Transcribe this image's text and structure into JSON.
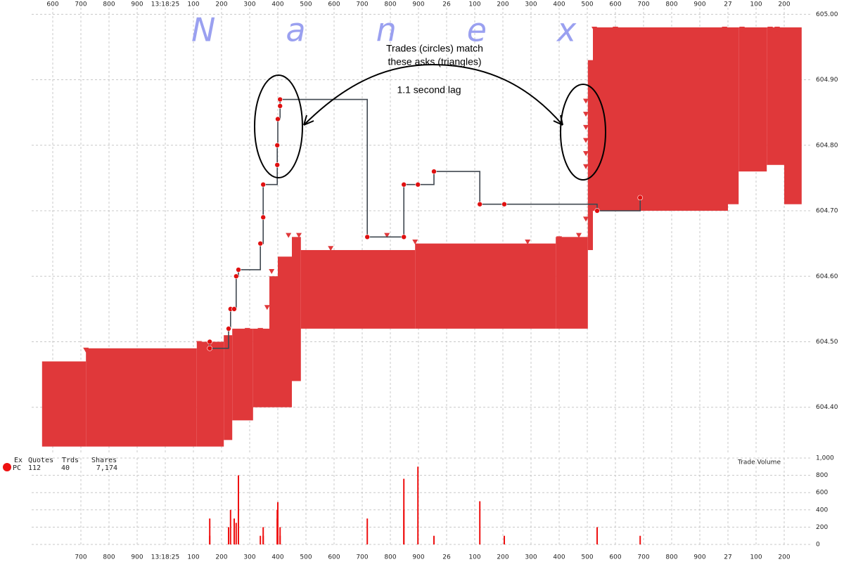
{
  "chart_data": [
    {
      "type": "tick",
      "watermark": "Nanex",
      "annotations": [
        "Trades (circles) match",
        "these asks (triangles)",
        "1.1 second lag"
      ],
      "xlim": [
        24.525,
        27.3
      ],
      "xticks": [
        {
          "value": 24.6,
          "label": "600"
        },
        {
          "value": 24.7,
          "label": "700"
        },
        {
          "value": 24.8,
          "label": "800"
        },
        {
          "value": 24.9,
          "label": "900"
        },
        {
          "value": 25.0,
          "label": "13:18:25"
        },
        {
          "value": 25.1,
          "label": "100"
        },
        {
          "value": 25.2,
          "label": "200"
        },
        {
          "value": 25.3,
          "label": "300"
        },
        {
          "value": 25.4,
          "label": "400"
        },
        {
          "value": 25.5,
          "label": "500"
        },
        {
          "value": 25.6,
          "label": "600"
        },
        {
          "value": 25.7,
          "label": "700"
        },
        {
          "value": 25.8,
          "label": "800"
        },
        {
          "value": 25.9,
          "label": "900"
        },
        {
          "value": 26.0,
          "label": "26"
        },
        {
          "value": 26.1,
          "label": "100"
        },
        {
          "value": 26.2,
          "label": "200"
        },
        {
          "value": 26.3,
          "label": "300"
        },
        {
          "value": 26.4,
          "label": "400"
        },
        {
          "value": 26.5,
          "label": "500"
        },
        {
          "value": 26.6,
          "label": "600"
        },
        {
          "value": 26.7,
          "label": "700"
        },
        {
          "value": 26.8,
          "label": "800"
        },
        {
          "value": 26.9,
          "label": "900"
        },
        {
          "value": 27.0,
          "label": "27"
        },
        {
          "value": 27.1,
          "label": "100"
        },
        {
          "value": 27.2,
          "label": "200"
        }
      ],
      "ylim": [
        604.33,
        605.01
      ],
      "yticks": [
        {
          "value": 604.4,
          "label": "604.40"
        },
        {
          "value": 604.5,
          "label": "604.50"
        },
        {
          "value": 604.6,
          "label": "604.60"
        },
        {
          "value": 604.7,
          "label": "604.70"
        },
        {
          "value": 604.8,
          "label": "604.80"
        },
        {
          "value": 604.9,
          "label": "604.90"
        },
        {
          "value": 605.0,
          "label": "605.00"
        }
      ],
      "grid": true,
      "quotes": {
        "color": "#e0383a",
        "edges": [
          24.562,
          24.718,
          25.112,
          25.208,
          25.238,
          25.312,
          25.37,
          25.4,
          25.45,
          25.482,
          25.888,
          26.388,
          26.502,
          26.52,
          27.0,
          27.038,
          27.138,
          27.2,
          27.262
        ],
        "ask": [
          604.47,
          604.49,
          604.5,
          604.51,
          604.52,
          604.52,
          604.6,
          604.63,
          604.66,
          604.64,
          604.65,
          604.66,
          604.93,
          604.98,
          604.98,
          604.98,
          604.98,
          604.98
        ],
        "bid": [
          604.34,
          604.34,
          604.34,
          604.35,
          604.38,
          604.4,
          604.4,
          604.4,
          604.44,
          604.52,
          604.52,
          604.52,
          604.64,
          604.7,
          604.71,
          604.76,
          604.77,
          604.71
        ]
      },
      "ask_markers": {
        "color": "#e0383a",
        "x": [
          24.718,
          25.12,
          25.225,
          25.292,
          25.338,
          25.362,
          25.378,
          25.438,
          25.475,
          25.588,
          25.788,
          25.888,
          26.288,
          26.4,
          26.47,
          26.495,
          26.495,
          26.495,
          26.495,
          26.495,
          26.495,
          26.495,
          26.525,
          26.6,
          26.988,
          27.05,
          27.15,
          27.175
        ],
        "values": [
          604.49,
          604.5,
          604.52,
          604.52,
          604.52,
          604.555,
          604.61,
          604.665,
          604.665,
          604.645,
          604.665,
          604.655,
          604.655,
          604.66,
          604.665,
          604.69,
          604.87,
          604.85,
          604.83,
          604.81,
          604.79,
          604.77,
          604.98,
          604.98,
          604.98,
          604.98,
          604.98,
          604.98
        ]
      },
      "trades": {
        "color": "#e01010",
        "line_color": "#404850",
        "x": [
          25.158,
          25.158,
          25.225,
          25.232,
          25.245,
          25.252,
          25.26,
          25.338,
          25.348,
          25.348,
          25.398,
          25.398,
          25.4,
          25.408,
          25.408,
          25.718,
          25.848,
          25.848,
          25.898,
          25.955,
          26.118,
          26.205,
          26.535,
          26.688
        ],
        "values": [
          604.5,
          604.49,
          604.52,
          604.55,
          604.55,
          604.6,
          604.61,
          604.65,
          604.69,
          604.74,
          604.77,
          604.8,
          604.84,
          604.86,
          604.87,
          604.66,
          604.66,
          604.74,
          604.74,
          604.76,
          604.71,
          604.71,
          604.7,
          604.72
        ]
      }
    },
    {
      "type": "bar",
      "title": "Trade Volume",
      "color": "#ee1111",
      "stats": {
        "headers": [
          "Ex",
          "Quotes",
          "Trds",
          "Shares"
        ],
        "rows": [
          [
            "PC",
            "112",
            "40",
            "7,174"
          ]
        ]
      },
      "xlim": [
        24.525,
        27.3
      ],
      "xticks": [
        {
          "value": 24.7,
          "label": "700"
        },
        {
          "value": 24.8,
          "label": "800"
        },
        {
          "value": 24.9,
          "label": "900"
        },
        {
          "value": 25.0,
          "label": "13:18:25"
        },
        {
          "value": 25.1,
          "label": "100"
        },
        {
          "value": 25.2,
          "label": "200"
        },
        {
          "value": 25.3,
          "label": "300"
        },
        {
          "value": 25.4,
          "label": "400"
        },
        {
          "value": 25.5,
          "label": "500"
        },
        {
          "value": 25.6,
          "label": "600"
        },
        {
          "value": 25.7,
          "label": "700"
        },
        {
          "value": 25.8,
          "label": "800"
        },
        {
          "value": 25.9,
          "label": "900"
        },
        {
          "value": 26.0,
          "label": "26"
        },
        {
          "value": 26.1,
          "label": "100"
        },
        {
          "value": 26.2,
          "label": "200"
        },
        {
          "value": 26.3,
          "label": "300"
        },
        {
          "value": 26.4,
          "label": "400"
        },
        {
          "value": 26.5,
          "label": "500"
        },
        {
          "value": 26.6,
          "label": "600"
        },
        {
          "value": 26.7,
          "label": "700"
        },
        {
          "value": 26.8,
          "label": "800"
        },
        {
          "value": 26.9,
          "label": "900"
        },
        {
          "value": 27.0,
          "label": "27"
        },
        {
          "value": 27.1,
          "label": "100"
        },
        {
          "value": 27.2,
          "label": "200"
        }
      ],
      "ylim": [
        0,
        1000
      ],
      "yticks": [
        0,
        200,
        400,
        600,
        800,
        {
          "value": 1000,
          "label": "1,000"
        }
      ],
      "grid": true,
      "x": [
        25.158,
        25.158,
        25.225,
        25.232,
        25.245,
        25.252,
        25.26,
        25.338,
        25.348,
        25.348,
        25.398,
        25.398,
        25.4,
        25.408,
        25.408,
        25.718,
        25.848,
        25.848,
        25.898,
        25.955,
        26.118,
        26.205,
        26.535,
        26.688
      ],
      "values": [
        300,
        100,
        200,
        400,
        300,
        250,
        800,
        100,
        200,
        100,
        400,
        300,
        490,
        200,
        100,
        300,
        760,
        400,
        900,
        100,
        500,
        100,
        200,
        100
      ]
    }
  ]
}
